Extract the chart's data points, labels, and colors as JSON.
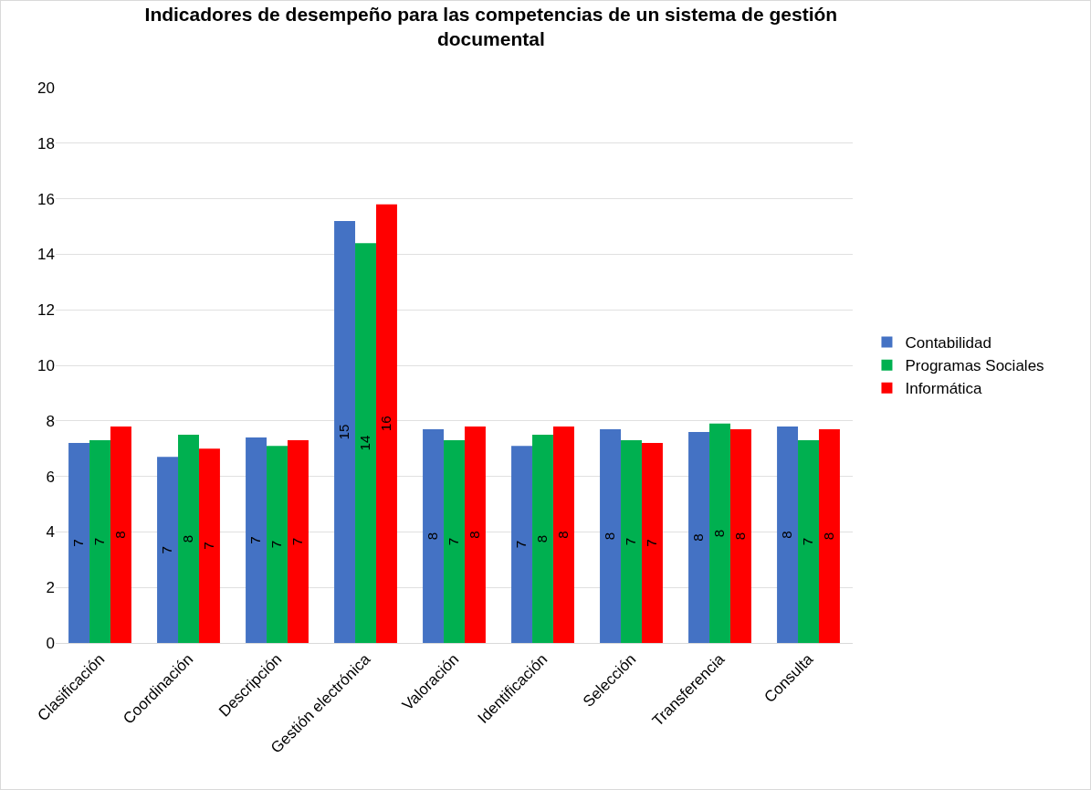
{
  "chart_data": {
    "type": "bar",
    "title": "Indicadores de desempeño para las competencias de un sistema de gestión documental",
    "categories": [
      "Clasificación",
      "Coordinación",
      "Descripción",
      "Gestión electrónica",
      "Valoración",
      "Identificación",
      "Selección",
      "Transferencia",
      "Consulta"
    ],
    "series": [
      {
        "name": "Contabilidad",
        "color": "#4472c4",
        "values": [
          7.2,
          6.7,
          7.4,
          15.2,
          7.7,
          7.1,
          7.7,
          7.6,
          7.8
        ],
        "value_labels": [
          "7",
          "7",
          "7",
          "15",
          "8",
          "7",
          "8",
          "8",
          "8"
        ]
      },
      {
        "name": "Programas Sociales",
        "color": "#00b050",
        "values": [
          7.3,
          7.5,
          7.1,
          14.4,
          7.3,
          7.5,
          7.3,
          7.9,
          7.3
        ],
        "value_labels": [
          "7",
          "8",
          "7",
          "14",
          "7",
          "8",
          "7",
          "8",
          "7"
        ]
      },
      {
        "name": "Informática",
        "color": "#ff0000",
        "values": [
          7.8,
          7.0,
          7.3,
          15.8,
          7.8,
          7.8,
          7.2,
          7.7,
          7.7
        ],
        "value_labels": [
          "8",
          "7",
          "7",
          "16",
          "8",
          "8",
          "7",
          "8",
          "8"
        ]
      }
    ],
    "ylim": [
      0,
      20
    ],
    "yticks": [
      0,
      2,
      4,
      6,
      8,
      10,
      12,
      14,
      16,
      18,
      20
    ],
    "grid": "y",
    "legend": "right"
  }
}
